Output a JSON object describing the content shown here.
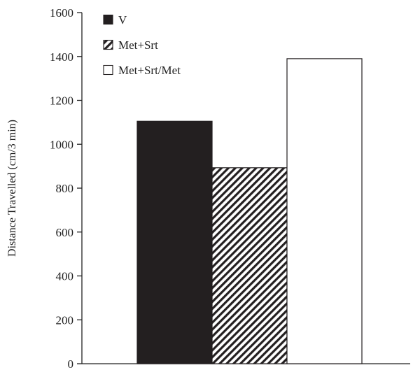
{
  "chart_data": {
    "type": "bar",
    "title": "",
    "xlabel": "",
    "ylabel": "Distance Travelled (cm/3 min)",
    "ylim": [
      0,
      1600
    ],
    "yticks": [
      0,
      200,
      400,
      600,
      800,
      1000,
      1200,
      1400,
      1600
    ],
    "grid": false,
    "legend_position": "top-left",
    "series": [
      {
        "name": "V",
        "value": 1105,
        "fill": "#231f20",
        "pattern": "solid"
      },
      {
        "name": "Met+Srt",
        "value": 893,
        "fill": "#231f20",
        "pattern": "diagonal-hatch"
      },
      {
        "name": "Met+Srt/Met",
        "value": 1390,
        "fill": "#ffffff",
        "pattern": "outline"
      }
    ]
  }
}
